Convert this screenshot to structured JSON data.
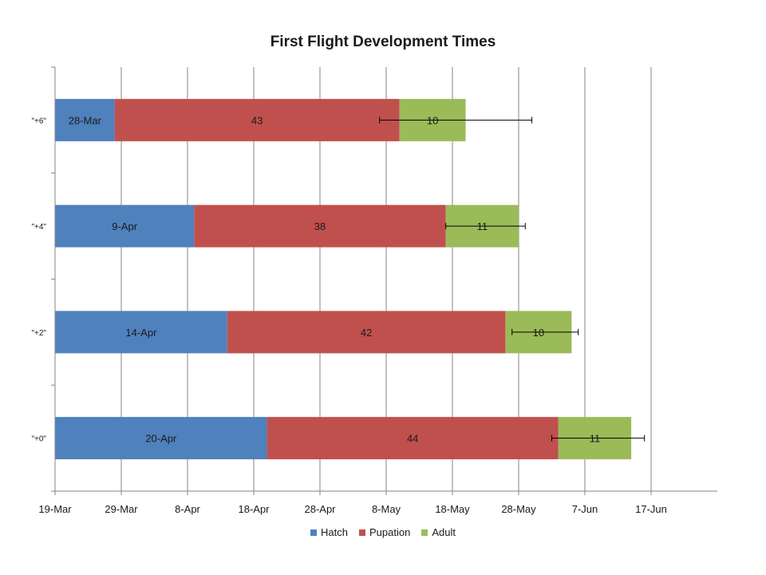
{
  "chart_data": {
    "type": "bar",
    "orientation": "horizontal",
    "stacked": true,
    "title": "First Flight Development Times",
    "xlabel": "",
    "ylabel": "",
    "x_axis": {
      "type": "date",
      "min": "19-Mar",
      "max": "27-Jun",
      "tick_labels": [
        "19-Mar",
        "29-Mar",
        "8-Apr",
        "18-Apr",
        "28-Apr",
        "8-May",
        "18-May",
        "28-May",
        "7-Jun",
        "17-Jun"
      ],
      "tick_interval_days": 10
    },
    "grid": {
      "vertical": true,
      "horizontal": false
    },
    "categories": [
      "\"+0\"",
      "\"+2\"",
      "\"+4\"",
      "\"+6\""
    ],
    "series": [
      {
        "name": "Hatch",
        "color": "#4f81bd",
        "values": [
          20,
          14,
          9,
          28
        ],
        "units": "date (bar end)",
        "labels": [
          "20-Apr",
          "14-Apr",
          "9-Apr",
          "28-Mar"
        ]
      },
      {
        "name": "Pupation",
        "color": "#c0504d",
        "values": [
          44,
          42,
          38,
          43
        ],
        "units": "days",
        "labels": [
          "44",
          "42",
          "38",
          "43"
        ]
      },
      {
        "name": "Adult",
        "color": "#9bbb59",
        "values": [
          11,
          10,
          11,
          10
        ],
        "units": "days",
        "labels": [
          "11",
          "10",
          "11",
          "10"
        ]
      }
    ],
    "hatch_dates": [
      "20-Apr",
      "14-Apr",
      "9-Apr",
      "28-Mar"
    ],
    "error_bars": [
      {
        "category": "\"+0\"",
        "low": "2-Jun",
        "high": "16-Jun"
      },
      {
        "category": "\"+2\"",
        "low": "27-May",
        "high": "6-Jun"
      },
      {
        "category": "\"+4\"",
        "low": "17-May",
        "high": "29-May"
      },
      {
        "category": "\"+6\"",
        "low": "7-May",
        "high": "30-May"
      }
    ],
    "legend": {
      "position": "bottom",
      "entries": [
        "Hatch",
        "Pupation",
        "Adult"
      ]
    }
  },
  "colors": {
    "axis": "#868686",
    "grid": "#868686",
    "error_bar": "#000000",
    "text": "#1a1a1a"
  }
}
